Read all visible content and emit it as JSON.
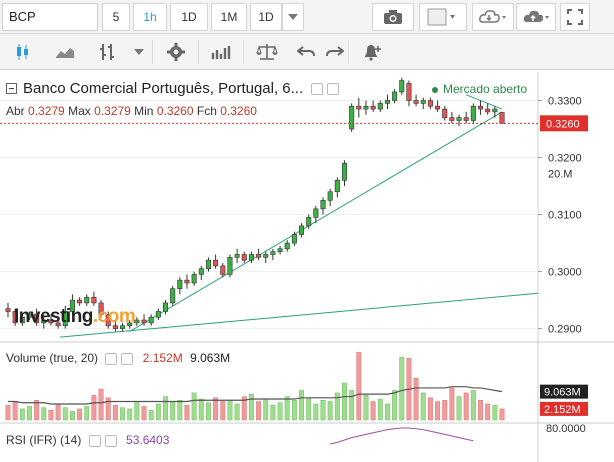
{
  "toolbar": {
    "symbol": "BCP",
    "intervals": [
      "5",
      "1h",
      "1D",
      "1M",
      "1D"
    ],
    "active_interval": "1h"
  },
  "legend": {
    "title": "Banco Comercial Português, Portugal, 6...",
    "open_label": "Abr",
    "open": "0.3279",
    "high_label": "Max",
    "high": "0.3279",
    "low_label": "Min",
    "low": "0.3260",
    "close_label": "Fch",
    "close": "0.3260",
    "market_status": "Mercado aberto"
  },
  "volume_legend": {
    "label": "Volume (true, 20)",
    "value1": "2.152M",
    "value2": "9.063M"
  },
  "rsi_legend": {
    "label": "RSI (IFR) (14)",
    "value": "53.6403"
  },
  "watermark": {
    "text": "Investing",
    "suffix": ".com"
  },
  "colors": {
    "up": "#3cb043",
    "down": "#e05555",
    "trend": "#2aa27a",
    "current": "#e0302c",
    "rsi": "#9b4fa5"
  },
  "chart_data": [
    {
      "type": "candlestick",
      "title": "Banco Comercial Português, Portugal",
      "ylim": [
        0.288,
        0.335
      ],
      "yticks": [
        "0.3300",
        "0.3200",
        "0.3100",
        "0.3000",
        "0.2900"
      ],
      "current_price": "0.3260",
      "candles": [
        [
          0.2935,
          0.2945,
          0.292,
          0.293
        ],
        [
          0.293,
          0.2935,
          0.2905,
          0.291
        ],
        [
          0.291,
          0.2925,
          0.2905,
          0.292
        ],
        [
          0.292,
          0.293,
          0.2915,
          0.2925
        ],
        [
          0.2925,
          0.2935,
          0.2905,
          0.291
        ],
        [
          0.291,
          0.292,
          0.29,
          0.2915
        ],
        [
          0.2915,
          0.2925,
          0.2905,
          0.291
        ],
        [
          0.291,
          0.2915,
          0.29,
          0.2905
        ],
        [
          0.2905,
          0.294,
          0.29,
          0.293
        ],
        [
          0.293,
          0.296,
          0.2925,
          0.295
        ],
        [
          0.295,
          0.2955,
          0.294,
          0.2945
        ],
        [
          0.2945,
          0.296,
          0.294,
          0.2955
        ],
        [
          0.2955,
          0.2965,
          0.294,
          0.2945
        ],
        [
          0.2945,
          0.295,
          0.292,
          0.2925
        ],
        [
          0.2925,
          0.293,
          0.29,
          0.2905
        ],
        [
          0.2905,
          0.2915,
          0.2895,
          0.29
        ],
        [
          0.29,
          0.291,
          0.2895,
          0.2905
        ],
        [
          0.2905,
          0.2915,
          0.29,
          0.291
        ],
        [
          0.291,
          0.292,
          0.2905,
          0.2915
        ],
        [
          0.2915,
          0.2925,
          0.2905,
          0.291
        ],
        [
          0.291,
          0.2925,
          0.2905,
          0.292
        ],
        [
          0.292,
          0.2935,
          0.2915,
          0.293
        ],
        [
          0.293,
          0.295,
          0.2925,
          0.2945
        ],
        [
          0.2945,
          0.2975,
          0.294,
          0.297
        ],
        [
          0.297,
          0.299,
          0.296,
          0.2985
        ],
        [
          0.2985,
          0.2995,
          0.297,
          0.298
        ],
        [
          0.298,
          0.3,
          0.2975,
          0.2995
        ],
        [
          0.2995,
          0.301,
          0.2985,
          0.3005
        ],
        [
          0.3005,
          0.3025,
          0.3,
          0.302
        ],
        [
          0.302,
          0.303,
          0.3005,
          0.301
        ],
        [
          0.301,
          0.3015,
          0.299,
          0.2995
        ],
        [
          0.2995,
          0.303,
          0.299,
          0.3025
        ],
        [
          0.3025,
          0.304,
          0.3015,
          0.303
        ],
        [
          0.303,
          0.3035,
          0.3015,
          0.302
        ],
        [
          0.302,
          0.3035,
          0.3015,
          0.303
        ],
        [
          0.303,
          0.304,
          0.302,
          0.3025
        ],
        [
          0.3025,
          0.3035,
          0.3015,
          0.303
        ],
        [
          0.303,
          0.304,
          0.302,
          0.3035
        ],
        [
          0.3035,
          0.3045,
          0.303,
          0.304
        ],
        [
          0.304,
          0.3055,
          0.3035,
          0.305
        ],
        [
          0.305,
          0.307,
          0.3045,
          0.3065
        ],
        [
          0.3065,
          0.3085,
          0.306,
          0.308
        ],
        [
          0.308,
          0.31,
          0.3075,
          0.3095
        ],
        [
          0.3095,
          0.3115,
          0.3085,
          0.311
        ],
        [
          0.311,
          0.313,
          0.31,
          0.3125
        ],
        [
          0.3125,
          0.3145,
          0.3115,
          0.314
        ],
        [
          0.314,
          0.3165,
          0.313,
          0.316
        ],
        [
          0.316,
          0.3195,
          0.315,
          0.319
        ],
        [
          0.325,
          0.3295,
          0.3245,
          0.329
        ],
        [
          0.329,
          0.3305,
          0.327,
          0.3285
        ],
        [
          0.3285,
          0.33,
          0.3275,
          0.329
        ],
        [
          0.329,
          0.33,
          0.328,
          0.3285
        ],
        [
          0.3285,
          0.33,
          0.328,
          0.3295
        ],
        [
          0.3295,
          0.331,
          0.3285,
          0.33
        ],
        [
          0.33,
          0.332,
          0.3295,
          0.3315
        ],
        [
          0.3315,
          0.334,
          0.331,
          0.3335
        ],
        [
          0.333,
          0.3335,
          0.329,
          0.33
        ],
        [
          0.33,
          0.331,
          0.329,
          0.3295
        ],
        [
          0.3295,
          0.3305,
          0.3285,
          0.33
        ],
        [
          0.33,
          0.3305,
          0.3285,
          0.329
        ],
        [
          0.329,
          0.33,
          0.328,
          0.3285
        ],
        [
          0.3285,
          0.329,
          0.3265,
          0.327
        ],
        [
          0.327,
          0.328,
          0.326,
          0.3265
        ],
        [
          0.3265,
          0.3275,
          0.3255,
          0.327
        ],
        [
          0.327,
          0.328,
          0.326,
          0.3265
        ],
        [
          0.3265,
          0.3295,
          0.326,
          0.329
        ],
        [
          0.329,
          0.33,
          0.3275,
          0.3285
        ],
        [
          0.3285,
          0.3295,
          0.3275,
          0.328
        ],
        [
          0.328,
          0.329,
          0.327,
          0.3285
        ],
        [
          0.3279,
          0.3279,
          0.326,
          0.326
        ]
      ],
      "volume": [
        1.2,
        1.5,
        0.9,
        1.1,
        1.6,
        1.0,
        0.8,
        1.3,
        1.0,
        0.7,
        0.9,
        1.1,
        2.0,
        2.5,
        1.8,
        1.2,
        1.0,
        0.9,
        1.4,
        1.1,
        0.8,
        1.3,
        1.9,
        1.5,
        1.6,
        1.2,
        2.2,
        1.7,
        1.4,
        1.8,
        1.5,
        1.6,
        1.3,
        1.9,
        2.1,
        1.5,
        1.7,
        1.2,
        1.4,
        1.9,
        1.6,
        2.4,
        1.8,
        1.3,
        1.6,
        1.5,
        2.2,
        3.0,
        2.4,
        5.5,
        2.0,
        1.5,
        1.7,
        1.3,
        2.4,
        5.1,
        5.0,
        3.4,
        2.2,
        1.8,
        1.5,
        1.6,
        2.6,
        1.9,
        2.2,
        2.4,
        1.6,
        1.3,
        1.2,
        0.9
      ],
      "volume_ma": [
        1.5,
        1.5,
        1.4,
        1.4,
        1.4,
        1.4,
        1.3,
        1.3,
        1.3,
        1.3,
        1.3,
        1.3,
        1.4,
        1.4,
        1.5,
        1.5,
        1.5,
        1.5,
        1.5,
        1.5,
        1.5,
        1.5,
        1.5,
        1.5,
        1.5,
        1.5,
        1.6,
        1.6,
        1.6,
        1.6,
        1.6,
        1.6,
        1.6,
        1.6,
        1.7,
        1.7,
        1.7,
        1.7,
        1.7,
        1.7,
        1.7,
        1.8,
        1.8,
        1.8,
        1.8,
        1.8,
        1.8,
        1.9,
        1.9,
        2.1,
        2.1,
        2.1,
        2.1,
        2.1,
        2.2,
        2.4,
        2.5,
        2.6,
        2.6,
        2.6,
        2.6,
        2.6,
        2.7,
        2.7,
        2.7,
        2.6,
        2.6,
        2.5,
        2.4,
        2.3
      ],
      "volume_yticks": [
        "20.M"
      ],
      "rsi": [
        60,
        62,
        65,
        68,
        70,
        72,
        74,
        76,
        78,
        79,
        80,
        80,
        79,
        78,
        76,
        74,
        72,
        70,
        68,
        66,
        64
      ],
      "rsi_yticks": [
        "80.0000"
      ]
    }
  ]
}
